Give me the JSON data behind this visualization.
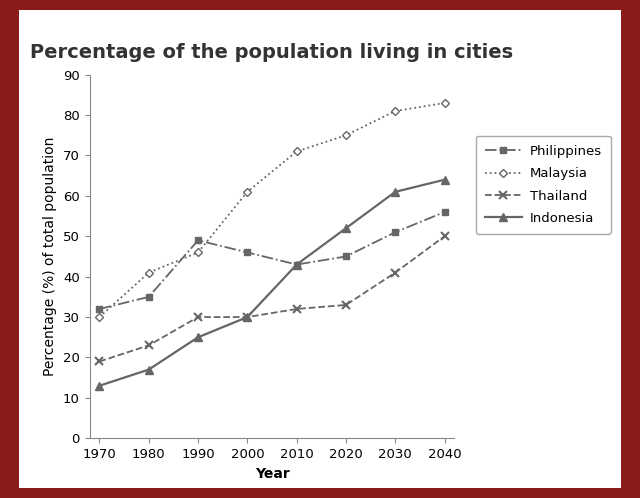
{
  "title": "Percentage of the population living in cities",
  "xlabel": "Year",
  "ylabel": "Percentage (%) of total population",
  "years": [
    1970,
    1980,
    1990,
    2000,
    2010,
    2020,
    2030,
    2040
  ],
  "philippines": [
    32,
    35,
    49,
    46,
    43,
    45,
    51,
    56
  ],
  "malaysia": [
    30,
    41,
    46,
    61,
    71,
    75,
    81,
    83
  ],
  "thailand": [
    19,
    23,
    30,
    30,
    32,
    33,
    41,
    50
  ],
  "indonesia": [
    13,
    17,
    25,
    30,
    43,
    52,
    61,
    64
  ],
  "ylim": [
    0,
    90
  ],
  "yticks": [
    0,
    10,
    20,
    30,
    40,
    50,
    60,
    70,
    80,
    90
  ],
  "xticks": [
    1970,
    1980,
    1990,
    2000,
    2010,
    2020,
    2030,
    2040
  ],
  "line_color": "#666666",
  "background_outer": "#8b1a1a",
  "background_inner": "#ffffff",
  "legend_labels": [
    "Philippines",
    "Malaysia",
    "Thailand",
    "Indonesia"
  ],
  "title_fontsize": 14,
  "label_fontsize": 10,
  "tick_fontsize": 9.5,
  "legend_fontsize": 9.5
}
